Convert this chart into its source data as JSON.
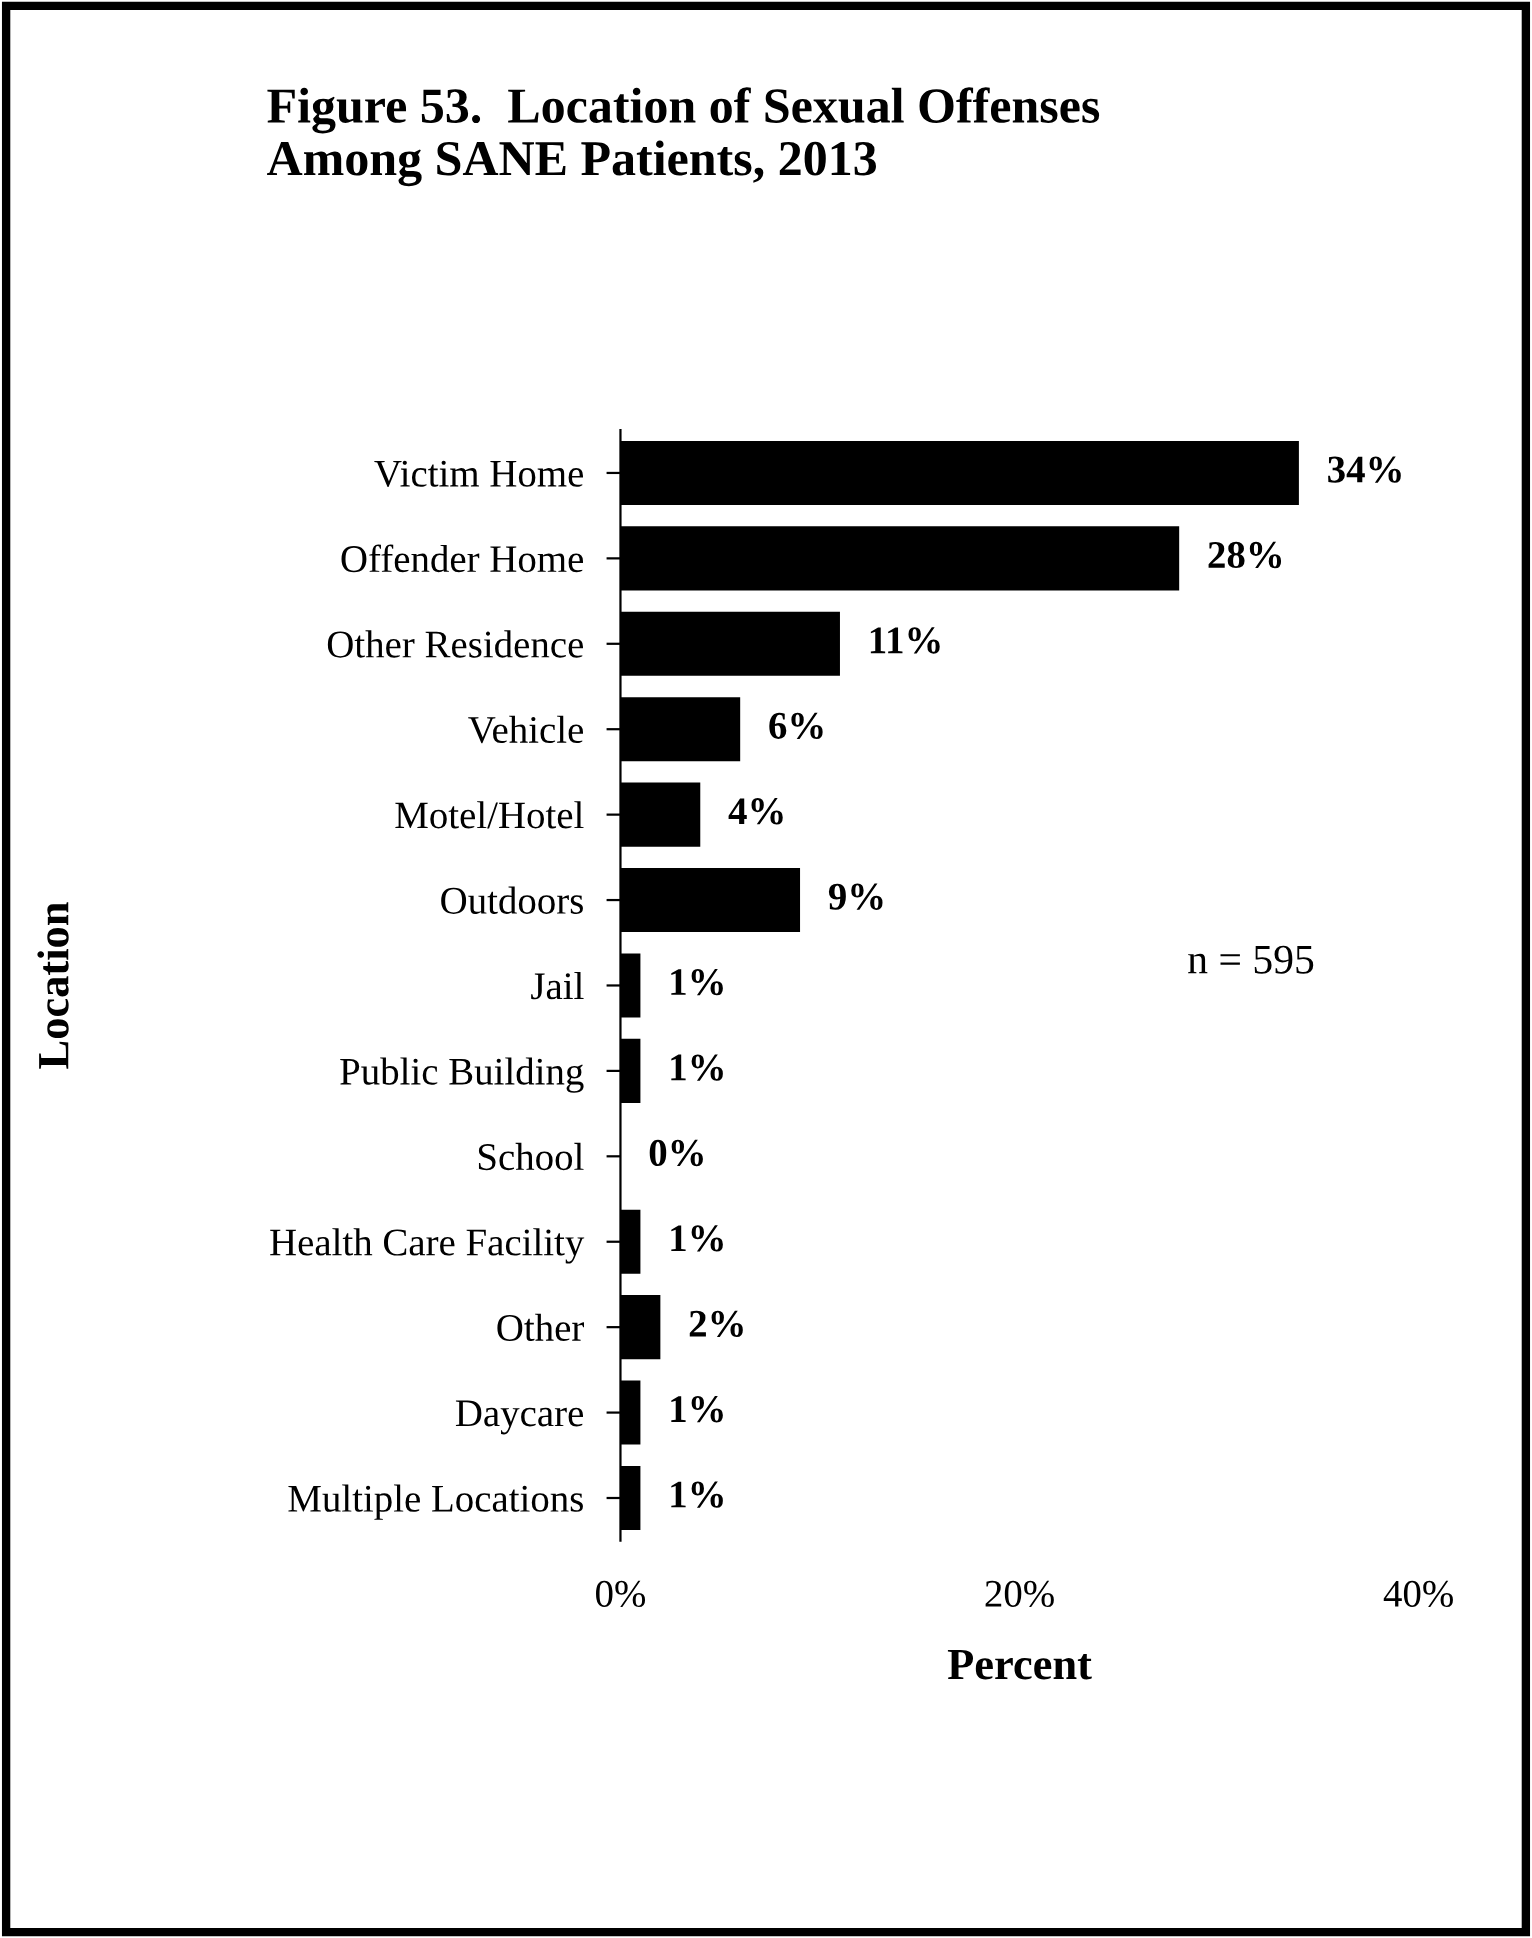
{
  "chart_data": {
    "type": "bar",
    "orientation": "horizontal",
    "title": "Figure 53.  Location of Sexual Offenses\nAmong SANE Patients, 2013",
    "xlabel": "Percent",
    "ylabel": "Location",
    "categories": [
      "Victim Home",
      "Offender Home",
      "Other Residence",
      "Vehicle",
      "Motel/Hotel",
      "Outdoors",
      "Jail",
      "Public Building",
      "School",
      "Health Care Facility",
      "Other",
      "Daycare",
      "Multiple Locations"
    ],
    "values": [
      34,
      28,
      11,
      6,
      4,
      9,
      1,
      1,
      0,
      1,
      2,
      1,
      1
    ],
    "value_labels": [
      "34%",
      "28%",
      "11%",
      "6%",
      "4%",
      "9%",
      "1%",
      "1%",
      "0%",
      "1%",
      "2%",
      "1%",
      "1%"
    ],
    "color": "#000000",
    "xlim": [
      0,
      40
    ],
    "xticks": [
      {
        "value": 0,
        "label": "0%"
      },
      {
        "value": 20,
        "label": "20%"
      },
      {
        "value": 40,
        "label": "40%"
      }
    ],
    "annotations": [
      "n = 595"
    ],
    "grid": false
  }
}
